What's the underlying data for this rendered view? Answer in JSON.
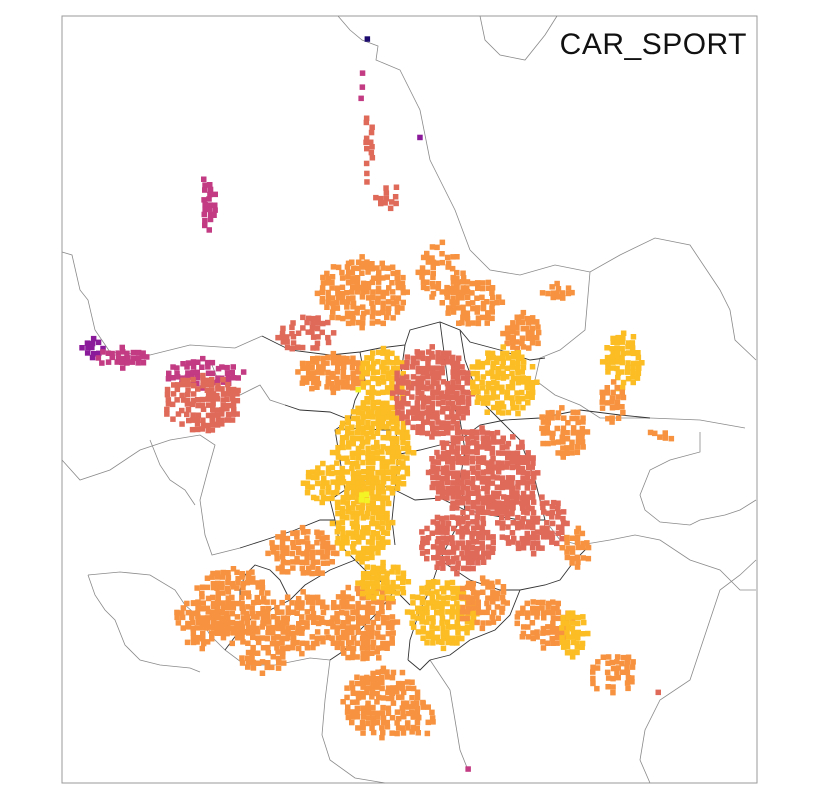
{
  "map": {
    "title": "CAR_SPORT",
    "colors": {
      "frame": "#9a9a9a",
      "outer_boundary": "#8a8a8a",
      "district_boundary": "#333333",
      "level_1_darkest": "#1d0a6e",
      "level_2": "#8b1a9a",
      "level_3": "#c23b83",
      "level_4": "#e06a5a",
      "level_5": "#f79340",
      "level_6": "#fbbd23",
      "level_7_lightest": "#f3f325"
    }
  }
}
